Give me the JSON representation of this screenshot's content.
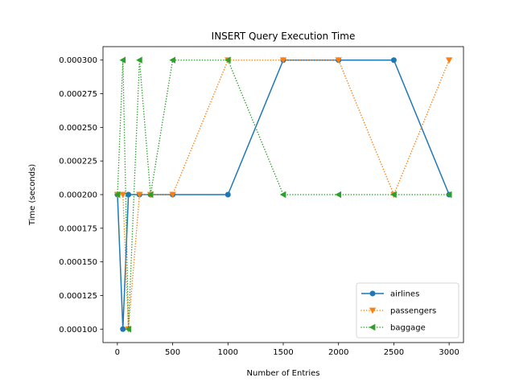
{
  "chart_data": {
    "type": "line",
    "title": "INSERT Query Execution Time",
    "xlabel": "Number of Entries",
    "ylabel": "Time (seconds)",
    "xlim": [
      -130,
      3130
    ],
    "ylim": [
      9e-05,
      0.00031
    ],
    "xticks": [
      0,
      500,
      1000,
      1500,
      2000,
      2500,
      3000
    ],
    "xtick_labels": [
      "0",
      "500",
      "1000",
      "1500",
      "2000",
      "2500",
      "3000"
    ],
    "yticks": [
      0.0001,
      0.000125,
      0.00015,
      0.000175,
      0.0002,
      0.000225,
      0.00025,
      0.000275,
      0.0003
    ],
    "ytick_labels": [
      "0.000100",
      "0.000125",
      "0.000150",
      "0.000175",
      "0.000200",
      "0.000225",
      "0.000250",
      "0.000275",
      "0.000300"
    ],
    "grid": false,
    "legend_position": "lower-right",
    "x": [
      1,
      50,
      100,
      200,
      300,
      500,
      1000,
      1500,
      2000,
      2500,
      3000
    ],
    "series": [
      {
        "name": "airlines",
        "values": [
          0.0002,
          0.0001,
          0.0002,
          0.0002,
          0.0002,
          0.0002,
          0.0002,
          0.0003,
          0.0003,
          0.0003,
          0.0002
        ],
        "color": "#1f77b4",
        "marker": "circle",
        "linestyle": "solid"
      },
      {
        "name": "passengers",
        "values": [
          0.0002,
          0.0002,
          0.0001,
          0.0002,
          0.0002,
          0.0002,
          0.0003,
          0.0003,
          0.0003,
          0.0002,
          0.0003
        ],
        "color": "#ff7f0e",
        "marker": "triangle-down",
        "linestyle": "dotted"
      },
      {
        "name": "baggage",
        "values": [
          0.0002,
          0.0003,
          0.0001,
          0.0003,
          0.0002,
          0.0003,
          0.0003,
          0.0002,
          0.0002,
          0.0002,
          0.0002
        ],
        "color": "#2ca02c",
        "marker": "triangle-left",
        "linestyle": "dotted"
      }
    ]
  }
}
